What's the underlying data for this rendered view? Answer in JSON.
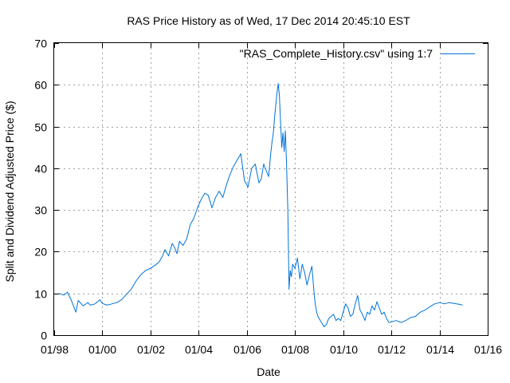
{
  "chart_data": {
    "type": "line",
    "title": "RAS Price History as of Wed, 17 Dec 2014 20:45:10 EST",
    "xlabel": "Date",
    "ylabel": "Split and Dividend Adjusted Price ($)",
    "xlim": [
      1998.0,
      2016.0
    ],
    "ylim": [
      0,
      70
    ],
    "grid": true,
    "legend_position": "top-right",
    "x_ticks": [
      {
        "value": 1998,
        "label": "01/98"
      },
      {
        "value": 2000,
        "label": "01/00"
      },
      {
        "value": 2002,
        "label": "01/02"
      },
      {
        "value": 2004,
        "label": "01/04"
      },
      {
        "value": 2006,
        "label": "01/06"
      },
      {
        "value": 2008,
        "label": "01/08"
      },
      {
        "value": 2010,
        "label": "01/10"
      },
      {
        "value": 2012,
        "label": "01/12"
      },
      {
        "value": 2014,
        "label": "01/14"
      },
      {
        "value": 2016,
        "label": "01/16"
      }
    ],
    "y_ticks": [
      {
        "value": 0,
        "label": "0"
      },
      {
        "value": 10,
        "label": "10"
      },
      {
        "value": 20,
        "label": "20"
      },
      {
        "value": 30,
        "label": "30"
      },
      {
        "value": 40,
        "label": "40"
      },
      {
        "value": 50,
        "label": "50"
      },
      {
        "value": 60,
        "label": "60"
      },
      {
        "value": 70,
        "label": "70"
      }
    ],
    "series": [
      {
        "name": "\"RAS_Complete_History.csv\" using 1:7",
        "color": "#0072d6",
        "x": [
          1998.2,
          1998.4,
          1998.55,
          1998.7,
          1998.8,
          1998.9,
          1999.0,
          1999.2,
          1999.4,
          1999.5,
          1999.7,
          1999.9,
          2000.0,
          2000.2,
          2000.4,
          2000.6,
          2000.8,
          2001.0,
          2001.2,
          2001.4,
          2001.6,
          2001.8,
          2002.0,
          2002.2,
          2002.35,
          2002.5,
          2002.6,
          2002.75,
          2002.9,
          2003.0,
          2003.1,
          2003.2,
          2003.35,
          2003.5,
          2003.65,
          2003.8,
          2003.95,
          2004.1,
          2004.25,
          2004.4,
          2004.55,
          2004.7,
          2004.85,
          2005.0,
          2005.15,
          2005.3,
          2005.45,
          2005.6,
          2005.75,
          2005.9,
          2006.05,
          2006.2,
          2006.35,
          2006.5,
          2006.6,
          2006.7,
          2006.8,
          2006.9,
          2007.0,
          2007.05,
          2007.1,
          2007.15,
          2007.2,
          2007.25,
          2007.3,
          2007.35,
          2007.4,
          2007.45,
          2007.5,
          2007.55,
          2007.6,
          2007.65,
          2007.7,
          2007.75,
          2007.8,
          2007.85,
          2007.9,
          2008.0,
          2008.1,
          2008.2,
          2008.3,
          2008.4,
          2008.5,
          2008.6,
          2008.7,
          2008.75,
          2008.8,
          2008.85,
          2008.9,
          2008.95,
          2009.0,
          2009.1,
          2009.2,
          2009.3,
          2009.4,
          2009.5,
          2009.6,
          2009.7,
          2009.8,
          2009.9,
          2010.0,
          2010.1,
          2010.2,
          2010.3,
          2010.4,
          2010.5,
          2010.6,
          2010.7,
          2010.8,
          2010.9,
          2011.0,
          2011.1,
          2011.2,
          2011.3,
          2011.4,
          2011.5,
          2011.6,
          2011.7,
          2011.8,
          2011.9,
          2012.0,
          2012.2,
          2012.4,
          2012.6,
          2012.8,
          2013.0,
          2013.2,
          2013.4,
          2013.6,
          2013.8,
          2014.0,
          2014.2,
          2014.4,
          2014.6,
          2014.8,
          2014.96
        ],
        "values": [
          10.0,
          9.6,
          10.3,
          8.5,
          7.0,
          5.5,
          8.3,
          7.0,
          7.8,
          7.2,
          7.5,
          8.5,
          7.6,
          7.2,
          7.5,
          7.8,
          8.5,
          9.8,
          11.0,
          13.0,
          14.5,
          15.5,
          16.0,
          16.8,
          17.5,
          19.0,
          20.5,
          19.0,
          22.0,
          21.0,
          19.5,
          22.5,
          21.5,
          23.0,
          26.5,
          28.0,
          30.5,
          32.5,
          34.0,
          33.5,
          30.5,
          33.0,
          34.5,
          33.0,
          36.0,
          38.5,
          40.5,
          42.0,
          43.5,
          37.0,
          35.5,
          40.0,
          41.0,
          36.5,
          37.5,
          41.0,
          39.5,
          38.0,
          44.0,
          46.5,
          48.5,
          52.0,
          55.0,
          58.0,
          60.3,
          57.5,
          51.0,
          45.0,
          48.5,
          44.0,
          49.0,
          41.0,
          30.0,
          11.0,
          15.5,
          14.0,
          17.0,
          16.0,
          18.5,
          13.5,
          17.0,
          15.0,
          12.0,
          14.5,
          16.5,
          13.0,
          9.5,
          7.0,
          5.5,
          4.5,
          4.0,
          3.0,
          2.0,
          2.5,
          4.0,
          4.5,
          5.0,
          3.5,
          4.0,
          3.5,
          5.5,
          7.5,
          6.5,
          4.5,
          5.0,
          7.5,
          9.5,
          6.0,
          5.0,
          3.5,
          5.5,
          5.0,
          7.0,
          6.0,
          8.0,
          6.5,
          5.0,
          5.5,
          4.0,
          3.0,
          3.2,
          3.5,
          3.0,
          3.5,
          4.2,
          4.5,
          5.5,
          6.0,
          6.8,
          7.5,
          7.8,
          7.5,
          7.8,
          7.6,
          7.4,
          7.2
        ]
      }
    ]
  }
}
